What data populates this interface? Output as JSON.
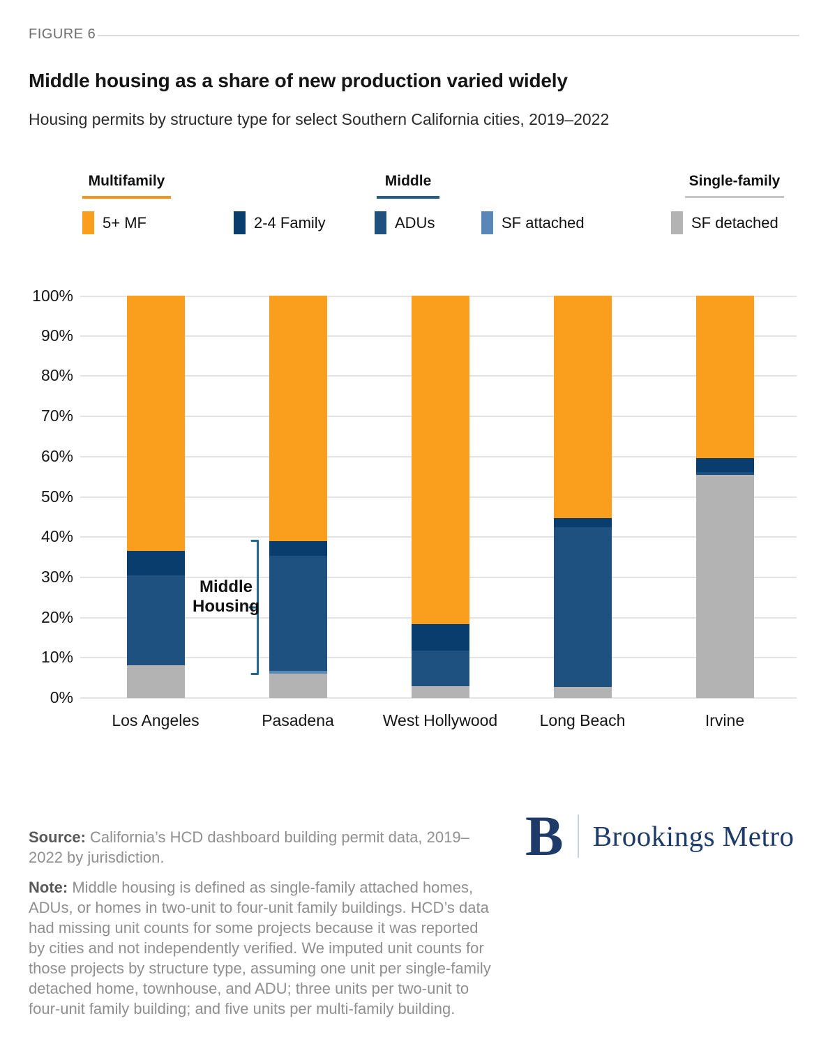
{
  "figure_label": "FIGURE 6",
  "title": "Middle housing as a share of new production varied widely",
  "subtitle": "Housing permits by structure type for select Southern California cities, 2019–2022",
  "legend": {
    "groups": [
      {
        "label": "Multifamily",
        "underline_color": "#F7941E"
      },
      {
        "label": "Middle",
        "underline_color": "#245E8C"
      },
      {
        "label": "Single-family",
        "underline_color": "#C6C6C6"
      }
    ],
    "items": [
      {
        "label": "5+ MF",
        "color": "#FA9E1E"
      },
      {
        "label": "2-4 Family",
        "color": "#083D6E"
      },
      {
        "label": "ADUs",
        "color": "#1E5180"
      },
      {
        "label": "SF attached",
        "color": "#5A87B8"
      },
      {
        "label": "SF detached",
        "color": "#B3B3B3"
      }
    ]
  },
  "chart_data": {
    "type": "bar",
    "stacked": true,
    "unit": "percent of permits",
    "categories": [
      "Los Angeles",
      "Pasadena",
      "West Hollywood",
      "Long Beach",
      "Irvine"
    ],
    "series": [
      {
        "name": "SF detached",
        "color": "#B3B3B3",
        "values": [
          8.1,
          6.1,
          3.0,
          2.8,
          55.5
        ]
      },
      {
        "name": "SF attached",
        "color": "#5A87B8",
        "values": [
          0,
          0.7,
          0,
          0,
          0
        ]
      },
      {
        "name": "ADUs",
        "color": "#1E5180",
        "values": [
          22.4,
          28.5,
          8.8,
          39.7,
          0.6
        ]
      },
      {
        "name": "2-4 Family",
        "color": "#083D6E",
        "values": [
          6.1,
          3.7,
          6.6,
          2.3,
          3.5
        ]
      },
      {
        "name": "5+ MF",
        "color": "#FA9E1E",
        "values": [
          63.4,
          61.0,
          81.6,
          55.2,
          40.4
        ]
      }
    ],
    "ylim": [
      0,
      100
    ],
    "ytick_step": 10,
    "ytick_suffix": "%",
    "grid": true,
    "legend_position": "top",
    "annotation": {
      "label": "Middle Housing",
      "bracket_color": "#20688F",
      "target_category": "Pasadena",
      "span_pct": [
        6.5,
        39.0
      ]
    }
  },
  "footer": {
    "source_label": "Source:",
    "source_text": " California’s HCD dashboard building permit data, 2019–2022 by jurisdiction.",
    "note_label": "Note:",
    "note_text": " Middle housing is defined as single-family attached homes, ADUs, or homes in two-unit to four-unit family buildings. HCD’s data had missing unit counts for some projects because it was reported by cities and not independently verified. We imputed unit counts for those projects by structure type, assuming one unit per single-family detached home, townhouse, and ADU; three units per two-unit to four-unit family building; and five units per multi-family building.",
    "logo": {
      "letter": "B",
      "text": "Brookings Metro",
      "color": "#1E3A68"
    }
  }
}
